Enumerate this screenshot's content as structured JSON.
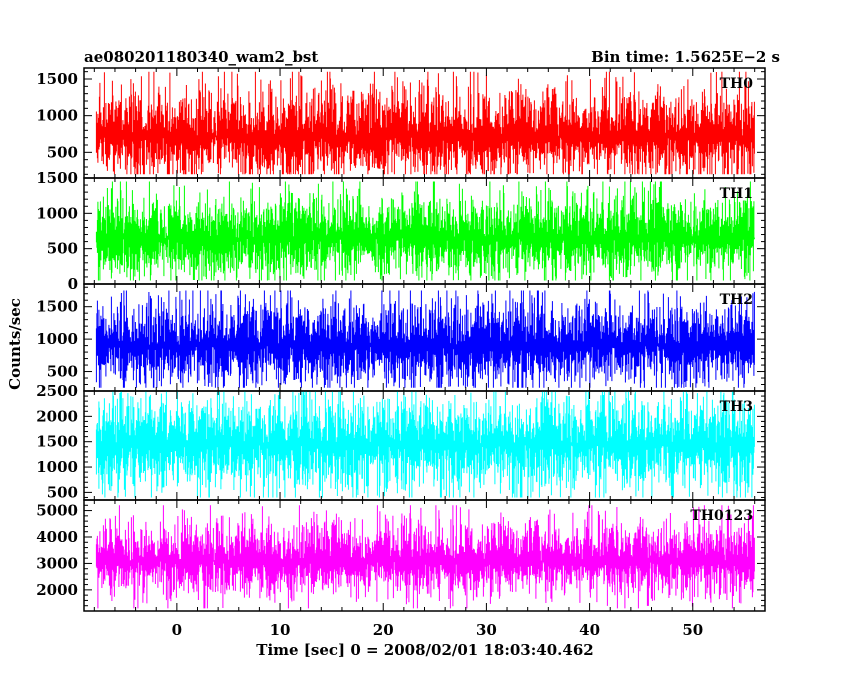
{
  "header": {
    "left_title": "ae080201180340_wam2_bst",
    "right_title": "Bin time: 1.5625E−2 s"
  },
  "chart_data": {
    "type": "line",
    "title": "ae080201180340_wam2_bst",
    "bin_time_s": 0.015625,
    "xlabel": "Time [sec] 0 = 2008/02/01 18:03:40.462",
    "ylabel": "Counts/sec",
    "xlim": [
      -9,
      57
    ],
    "xticks": [
      0,
      10,
      20,
      30,
      40,
      50
    ],
    "x_data_range": [
      -7.8,
      56
    ],
    "grid": false,
    "legend": "none",
    "panels": [
      {
        "name": "TH0",
        "color": "#ff0000",
        "ylim": [
          150,
          1650
        ],
        "yticks": [
          500,
          1000,
          1500
        ],
        "center": 720,
        "spread": 300,
        "max": 1600,
        "min": 200
      },
      {
        "name": "TH1",
        "color": "#00ff00",
        "ylim": [
          0,
          1500
        ],
        "yticks": [
          0,
          500,
          1000,
          1500
        ],
        "center": 650,
        "spread": 290,
        "max": 1450,
        "min": 50
      },
      {
        "name": "TH2",
        "color": "#0000ff",
        "ylim": [
          200,
          1850
        ],
        "yticks": [
          500,
          1000,
          1500
        ],
        "center": 900,
        "spread": 320,
        "max": 1750,
        "min": 250
      },
      {
        "name": "TH3",
        "color": "#00ffff",
        "ylim": [
          350,
          2500
        ],
        "yticks": [
          500,
          1000,
          1500,
          2000,
          2500
        ],
        "center": 1450,
        "spread": 450,
        "max": 2500,
        "min": 400
      },
      {
        "name": "TH0123",
        "color": "#ff00ff",
        "ylim": [
          1200,
          5400
        ],
        "yticks": [
          2000,
          3000,
          4000,
          5000
        ],
        "center": 3100,
        "spread": 700,
        "max": 5200,
        "min": 1300
      }
    ]
  }
}
